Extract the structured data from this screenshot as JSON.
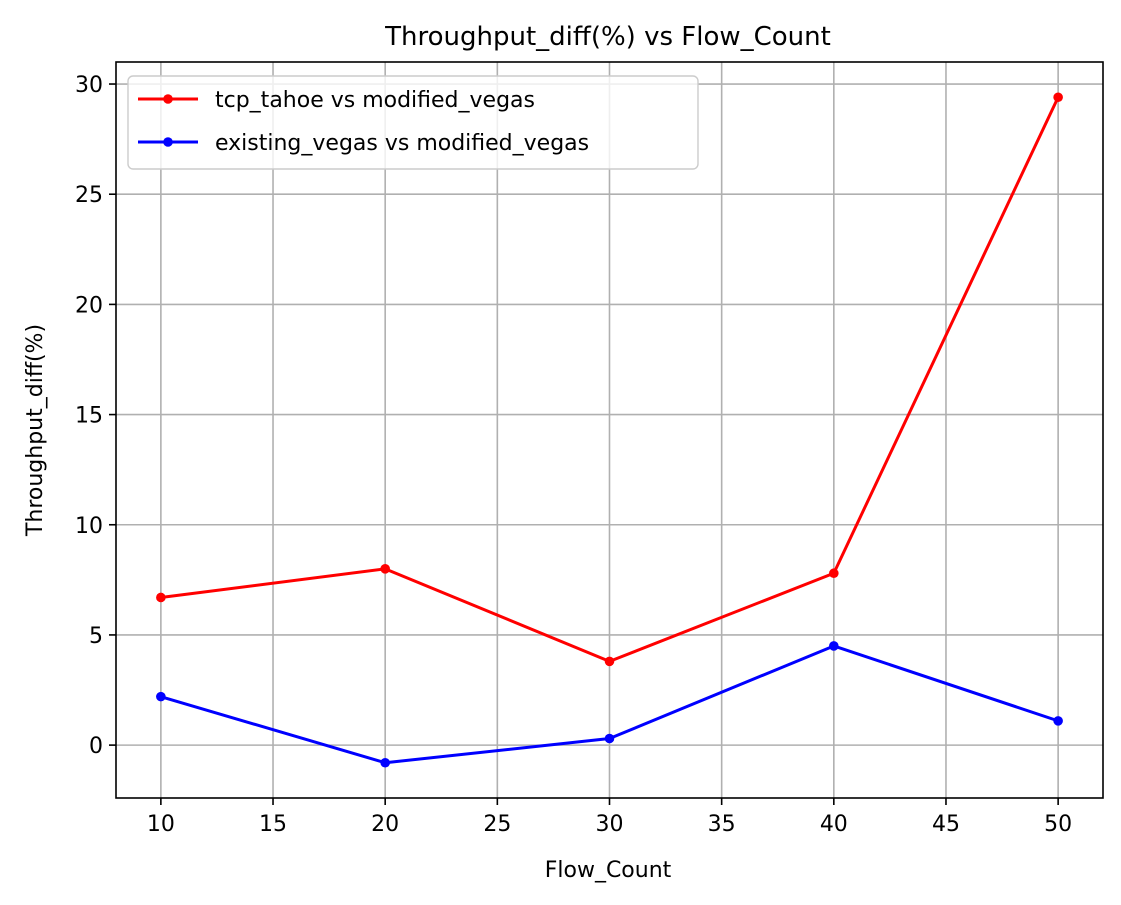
{
  "chart_data": {
    "type": "line",
    "title": "Throughput_diff(%) vs Flow_Count",
    "xlabel": "Flow_Count",
    "ylabel": "Throughput_diff(%)",
    "x": [
      10,
      20,
      30,
      40,
      50
    ],
    "xlim": [
      8,
      52
    ],
    "ylim": [
      -2.4,
      31.0
    ],
    "xticks": [
      10,
      15,
      20,
      25,
      30,
      35,
      40,
      45,
      50
    ],
    "yticks": [
      0,
      5,
      10,
      15,
      20,
      25,
      30
    ],
    "grid": true,
    "legend_position": "top-left",
    "series": [
      {
        "name": "tcp_tahoe vs modified_vegas",
        "color": "#ff0000",
        "marker": "circle",
        "values": [
          6.7,
          8.0,
          3.8,
          7.8,
          29.4
        ]
      },
      {
        "name": "existing_vegas vs modified_vegas",
        "color": "#0000ff",
        "marker": "circle",
        "values": [
          2.2,
          -0.8,
          0.3,
          4.5,
          1.1
        ]
      }
    ]
  }
}
